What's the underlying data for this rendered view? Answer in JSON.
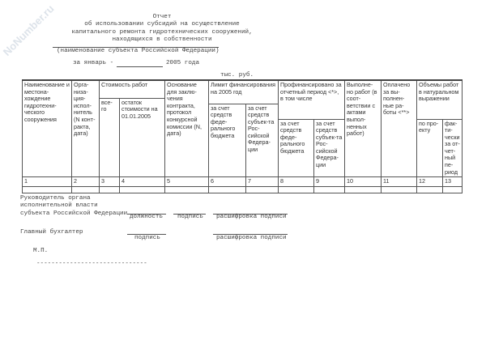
{
  "watermark": "NoNumber.ru",
  "header": {
    "title": "Отчет",
    "subtitle_lines": [
      "об использовании субсидий на осуществление",
      "капитального ремонта гидротехнических сооружений,",
      "находящихся в собственности"
    ],
    "subject_caption": "(наименование субъекта Российской Федерации)",
    "period_prefix": "за январь -",
    "period_suffix": "2005 года",
    "units": "тыс. руб."
  },
  "table": {
    "c1": "Наименование и местона-хождение гидротехни-ческого сооружения",
    "c2": "Орга-низа-ция-испол-нитель (N конт-ракта, дата)",
    "cost": "Стоимость работ",
    "c3": "все-го",
    "c4": "остаток стоимости на 01.01.2005",
    "c5": "Основание для заклю-чения контракта, протокол конкурсной комиссии (N, дата)",
    "limit": "Лимит финансирования на 2005 год",
    "c6": "за счет средств феде-рального бюджета",
    "c7": "за счет средств субъек-та Рос-сийской Федера-ции",
    "financed": "Профинансировано за отчетный период <*>, в том числе",
    "c8": "за счет средств феде-рального бюджета",
    "c9": "за счет средств субъек-та Рос-сийской Федера-ции",
    "c10": "Выполне-но работ (в соот-ветствии с актами выпол-ненных работ)",
    "c11": "Оплачено за вы-полнен-ные ра-боты <**>",
    "volume": "Объемы работ в натуральном выражении",
    "c12": "по про-екту",
    "c13": "фак-ти-чески за от-чет-ный пе-риод",
    "numbers": [
      "1",
      "2",
      "3",
      "4",
      "5",
      "6",
      "7",
      "8",
      "9",
      "10",
      "11",
      "12",
      "13"
    ]
  },
  "signatures": {
    "head_lines": [
      "Руководитель органа",
      "исполнительной власти",
      "субъекта Российской Федерации"
    ],
    "position": "должность",
    "signature": "подпись",
    "decoding": "расшифровка подписи",
    "accountant": "Главный бухгалтер",
    "signature2": "подпись",
    "decoding2": "расшифровка подписи",
    "stamp": "М.П.",
    "dashes": "------------------------------"
  }
}
